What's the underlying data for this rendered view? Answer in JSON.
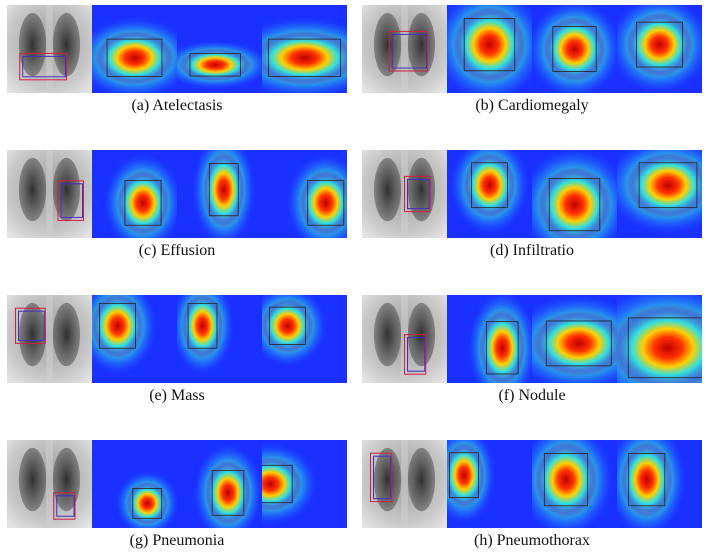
{
  "figure": {
    "captions": [
      "(a) Atelectasis",
      "(b) Cardiomegaly",
      "(c) Effusion",
      "(d) Infiltratio",
      "(e) Mass",
      "(f) Nodule",
      "(g) Pneumonia",
      "(h) Pneumothorax"
    ]
  }
}
